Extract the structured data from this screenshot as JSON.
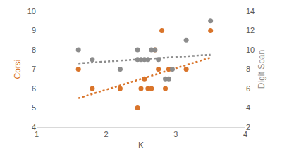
{
  "chart_data": {
    "type": "scatter",
    "xlabel": "K",
    "ylabel": "Corsi",
    "y2label": "Digit Span",
    "xlim": [
      1,
      4
    ],
    "xticks": [
      1,
      2,
      3,
      4
    ],
    "ylim": [
      4,
      10
    ],
    "yticks": [
      4,
      5,
      6,
      7,
      8,
      9,
      10
    ],
    "y2lim": [
      2,
      14
    ],
    "y2ticks": [
      2,
      4,
      6,
      8,
      10,
      12,
      14
    ],
    "grid": false,
    "series": [
      {
        "name": "Corsi",
        "color": "#d9742a",
        "type": "scatter",
        "marker": "circle",
        "x": [
          1.6,
          1.8,
          2.2,
          2.45,
          2.5,
          2.55,
          2.6,
          2.65,
          2.7,
          2.75,
          2.8,
          2.85,
          2.9,
          3.15,
          3.5
        ],
        "values": [
          7,
          6,
          6,
          5,
          6,
          6.5,
          6,
          6,
          8,
          7,
          9,
          6,
          7,
          7,
          9
        ]
      },
      {
        "name": "Digit Span",
        "color": "#8c8c8c",
        "type": "scatter",
        "marker": "circle",
        "axis": "y2",
        "x": [
          1.6,
          1.8,
          2.2,
          2.45,
          2.45,
          2.5,
          2.55,
          2.6,
          2.65,
          2.7,
          2.75,
          2.85,
          2.9,
          2.95,
          3.15,
          3.5
        ],
        "values": [
          10,
          9,
          8,
          10,
          9,
          9,
          9,
          9,
          10,
          10,
          9,
          7,
          7,
          8,
          11,
          13
        ]
      },
      {
        "color": "#d9742a",
        "type": "line",
        "line_style": "dot",
        "x": [
          1.6,
          3.5
        ],
        "values": [
          5.5,
          7.6
        ]
      },
      {
        "color": "#8c8c8c",
        "type": "line",
        "line_style": "dot",
        "axis": "y2",
        "x": [
          1.6,
          3.5
        ],
        "values": [
          8.6,
          9.5
        ]
      }
    ]
  }
}
